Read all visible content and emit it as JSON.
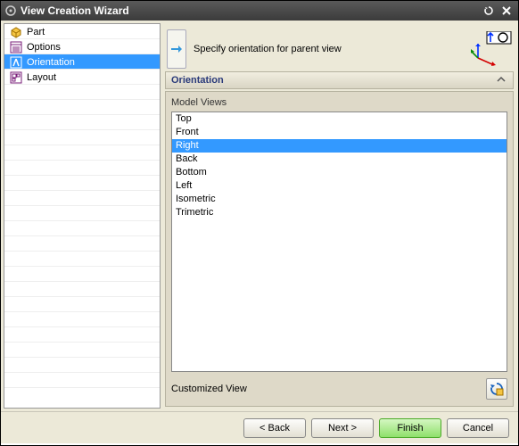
{
  "window": {
    "title": "View Creation Wizard"
  },
  "sidebar": {
    "items": [
      {
        "label": "Part",
        "selected": false
      },
      {
        "label": "Options",
        "selected": false
      },
      {
        "label": "Orientation",
        "selected": true
      },
      {
        "label": "Layout",
        "selected": false
      }
    ],
    "extra_rows": 20
  },
  "header": {
    "instruction": "Specify orientation for parent view"
  },
  "section": {
    "title": "Orientation"
  },
  "model_views": {
    "label": "Model Views",
    "items": [
      "Top",
      "Front",
      "Right",
      "Back",
      "Bottom",
      "Left",
      "Isometric",
      "Trimetric"
    ],
    "selected_index": 2
  },
  "customized": {
    "label": "Customized View"
  },
  "buttons": {
    "back": "< Back",
    "next": "Next >",
    "finish": "Finish",
    "cancel": "Cancel"
  },
  "colors": {
    "selection": "#3399ff",
    "panel_bg": "#ece9d8"
  }
}
